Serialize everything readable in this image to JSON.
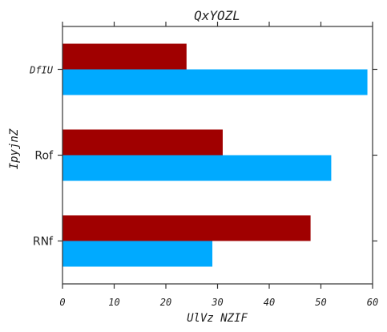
{
  "chart_data": {
    "type": "bar",
    "orientation": "horizontal",
    "title": "QxYOZL",
    "xlabel": "UlVz NZIF",
    "ylabel": "IpyjnZ",
    "categories": [
      "DfIU",
      "Rof",
      "RNf"
    ],
    "xlim": [
      0,
      60
    ],
    "xticks": [
      "0",
      "10",
      "20",
      "30",
      "40",
      "50",
      "60"
    ],
    "grid": false,
    "series": [
      {
        "color": "#a00000",
        "values": [
          24,
          31,
          48
        ]
      },
      {
        "color": "#00aaff",
        "values": [
          59,
          52,
          29
        ]
      }
    ]
  }
}
